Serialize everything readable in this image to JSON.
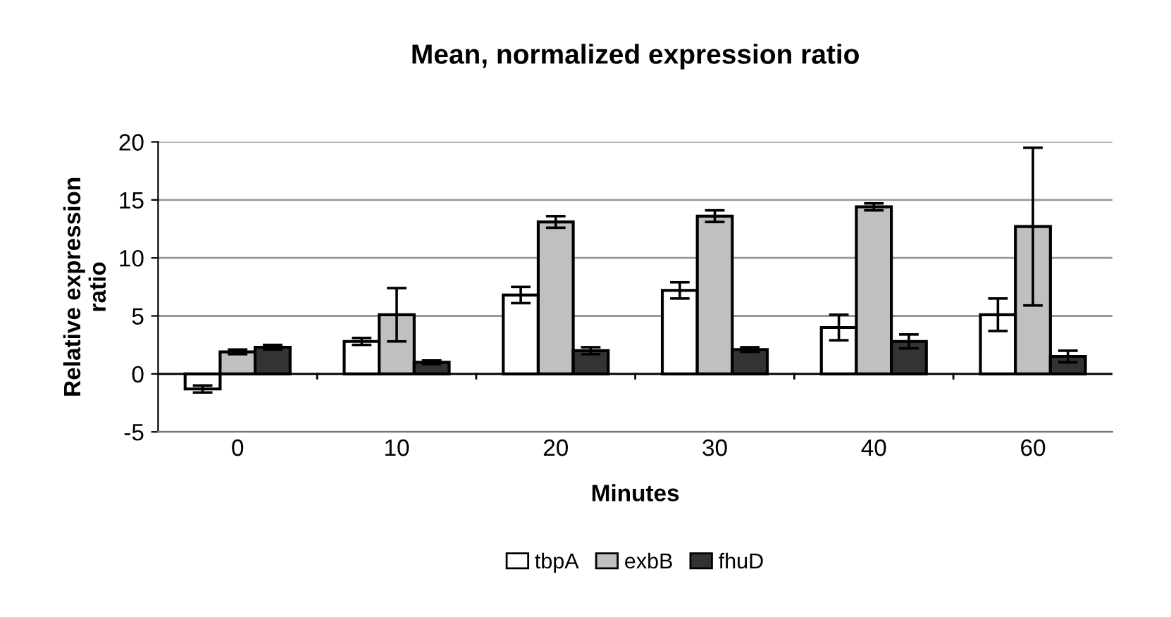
{
  "chart_data": {
    "type": "bar",
    "title": "Mean, normalized expression ratio",
    "xlabel": "Minutes",
    "ylabel": "Relative expression\nratio",
    "categories": [
      "0",
      "10",
      "20",
      "30",
      "40",
      "60"
    ],
    "series": [
      {
        "name": "tbpA",
        "color": "#ffffff",
        "values": [
          -1.3,
          2.8,
          6.8,
          7.2,
          4.0,
          5.1
        ],
        "errors": [
          0.3,
          0.3,
          0.7,
          0.7,
          1.1,
          1.4
        ]
      },
      {
        "name": "exbB",
        "color": "#c0c0c0",
        "values": [
          1.9,
          5.1,
          13.1,
          13.6,
          14.4,
          12.7
        ],
        "errors": [
          0.2,
          2.3,
          0.5,
          0.5,
          0.3,
          6.8
        ]
      },
      {
        "name": "fhuD",
        "color": "#333333",
        "values": [
          2.3,
          1.0,
          2.0,
          2.1,
          2.8,
          1.5
        ],
        "errors": [
          0.2,
          0.15,
          0.3,
          0.2,
          0.6,
          0.5
        ]
      }
    ],
    "ylim": [
      -5,
      20
    ],
    "yticks": [
      -5,
      0,
      5,
      10,
      15,
      20
    ],
    "grid": "y",
    "legend": "bottom"
  }
}
